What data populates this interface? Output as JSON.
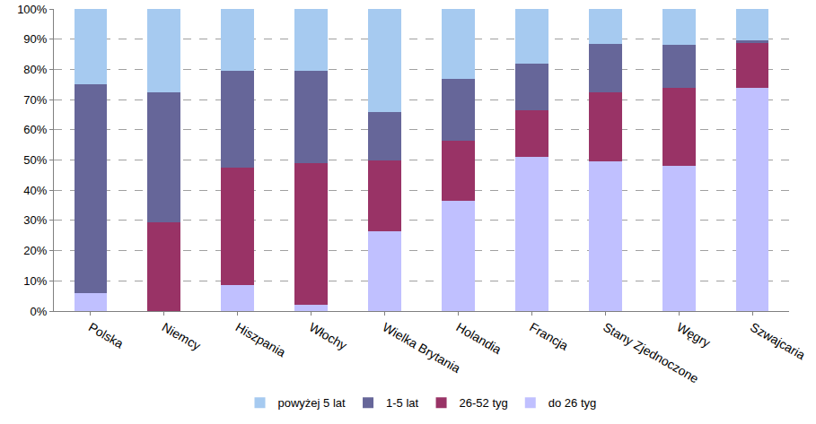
{
  "chart_data": {
    "type": "bar",
    "stacked": true,
    "categories": [
      "Polska",
      "Niemcy",
      "Hiszpania",
      "Włochy",
      "Wielka Brytania",
      "Holandia",
      "Francja",
      "Stany Zjednoczone",
      "Węgry",
      "Szwajcaria"
    ],
    "series": [
      {
        "name": "do 26 tyg",
        "color": "#c0c0ff",
        "values": [
          6,
          0,
          8.5,
          2,
          26.5,
          36.5,
          51,
          49.5,
          48,
          74
        ]
      },
      {
        "name": "26-52 tyg",
        "color": "#993366",
        "values": [
          0,
          29.5,
          39,
          47,
          23.5,
          20,
          15.5,
          23,
          26,
          15
        ]
      },
      {
        "name": "1-5 lat",
        "color": "#666699",
        "values": [
          69,
          43,
          32,
          30.5,
          16,
          20.5,
          15.5,
          16,
          14,
          0.5
        ]
      },
      {
        "name": "powyżej 5 lat",
        "color": "#a6caf0",
        "values": [
          25,
          27.5,
          20.5,
          20.5,
          34,
          23,
          18,
          11.5,
          12,
          10.5
        ]
      }
    ],
    "ylim": [
      0,
      100
    ],
    "yticks": [
      {
        "value": 0,
        "label": "0%"
      },
      {
        "value": 10,
        "label": "10%"
      },
      {
        "value": 20,
        "label": "20%"
      },
      {
        "value": 30,
        "label": "30%"
      },
      {
        "value": 40,
        "label": "40%"
      },
      {
        "value": 50,
        "label": "50%"
      },
      {
        "value": 60,
        "label": "60%"
      },
      {
        "value": 70,
        "label": "70%"
      },
      {
        "value": 80,
        "label": "80%"
      },
      {
        "value": 90,
        "label": "90%"
      },
      {
        "value": 100,
        "label": "100%"
      }
    ],
    "grid": true,
    "legend": "bottom"
  }
}
